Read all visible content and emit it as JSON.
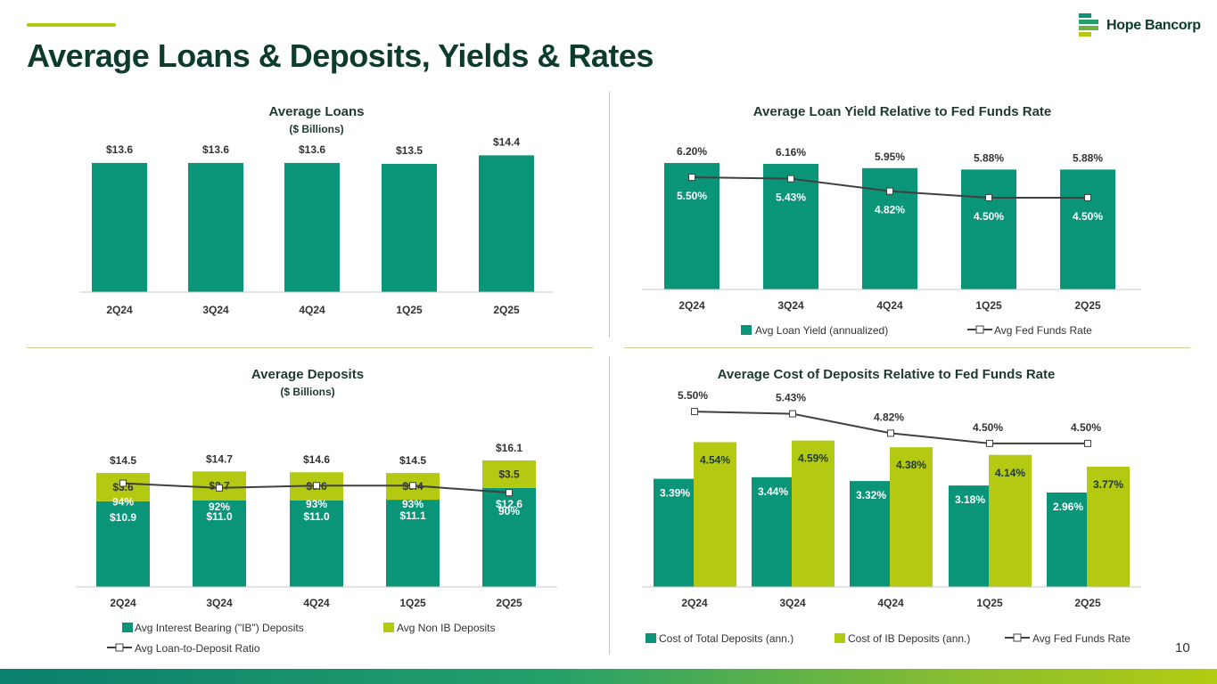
{
  "page": {
    "title": "Average Loans & Deposits, Yields & Rates",
    "logo_text": "Hope Bancorp",
    "page_number": "10"
  },
  "colors": {
    "teal": "#0a9478",
    "lime": "#b3c912",
    "line": "#404040",
    "title": "#0d3b2e"
  },
  "chart_data": [
    {
      "id": "loans",
      "type": "bar",
      "title": "Average Loans",
      "subtitle": "($ Billions)",
      "categories": [
        "2Q24",
        "3Q24",
        "4Q24",
        "1Q25",
        "2Q25"
      ],
      "values": [
        13.6,
        13.6,
        13.6,
        13.5,
        14.4
      ],
      "labels": [
        "$13.6",
        "$13.6",
        "$13.6",
        "$13.5",
        "$14.4"
      ],
      "ylim": [
        0,
        16.5
      ]
    },
    {
      "id": "loan_yield",
      "type": "bar",
      "title": "Average Loan Yield Relative to Fed Funds Rate",
      "categories": [
        "2Q24",
        "3Q24",
        "4Q24",
        "1Q25",
        "2Q25"
      ],
      "ylim": [
        0,
        6.9
      ],
      "series": [
        {
          "name": "Avg Loan Yield (annualized)",
          "kind": "bar",
          "values": [
            6.2,
            6.16,
            5.95,
            5.88,
            5.88
          ],
          "labels": [
            "6.20%",
            "6.16%",
            "5.95%",
            "5.88%",
            "5.88%"
          ]
        },
        {
          "name": "Avg Fed Funds Rate",
          "kind": "line",
          "values": [
            5.5,
            5.43,
            4.82,
            4.5,
            4.5
          ],
          "labels": [
            "5.50%",
            "5.43%",
            "4.82%",
            "4.50%",
            "4.50%"
          ]
        }
      ]
    },
    {
      "id": "deposits",
      "type": "stacked-bar",
      "title": "Average Deposits",
      "subtitle": "($ Billions)",
      "categories": [
        "2Q24",
        "3Q24",
        "4Q24",
        "1Q25",
        "2Q25"
      ],
      "ylim": [
        0,
        19.5
      ],
      "totals": [
        "$14.5",
        "$14.7",
        "$14.6",
        "$14.5",
        "$16.1"
      ],
      "series": [
        {
          "name": "Avg Interest Bearing (\"IB\") Deposits",
          "kind": "bar",
          "values": [
            10.9,
            11.0,
            11.0,
            11.1,
            12.6
          ],
          "labels": [
            "$10.9",
            "$11.0",
            "$11.0",
            "$11.1",
            "$12.6"
          ]
        },
        {
          "name": "Avg Non IB Deposits",
          "kind": "bar",
          "values": [
            3.6,
            3.7,
            3.6,
            3.4,
            3.5
          ],
          "labels": [
            "$3.6",
            "$3.7",
            "$3.6",
            "$3.4",
            "$3.5"
          ]
        },
        {
          "name": "Avg Loan-to-Deposit Ratio",
          "kind": "line",
          "values": [
            94,
            92,
            93,
            93,
            90
          ],
          "labels": [
            "94%",
            "92%",
            "93%",
            "93%",
            "90%"
          ],
          "ylim": [
            50,
            115
          ]
        }
      ]
    },
    {
      "id": "cost_deposits",
      "type": "bar",
      "title": "Average Cost of Deposits Relative to Fed Funds Rate",
      "categories": [
        "2Q24",
        "3Q24",
        "4Q24",
        "1Q25",
        "2Q25"
      ],
      "ylim": [
        0,
        6.2
      ],
      "series": [
        {
          "name": "Cost of Total Deposits (ann.)",
          "kind": "bar",
          "values": [
            3.39,
            3.44,
            3.32,
            3.18,
            2.96
          ],
          "labels": [
            "3.39%",
            "3.44%",
            "3.32%",
            "3.18%",
            "2.96%"
          ]
        },
        {
          "name": "Cost of IB Deposits (ann.)",
          "kind": "bar",
          "values": [
            4.54,
            4.59,
            4.38,
            4.14,
            3.77
          ],
          "labels": [
            "4.54%",
            "4.59%",
            "4.38%",
            "4.14%",
            "3.77%"
          ]
        },
        {
          "name": "Avg Fed Funds Rate",
          "kind": "line",
          "values": [
            5.5,
            5.43,
            4.82,
            4.5,
            4.5
          ],
          "labels": [
            "5.50%",
            "5.43%",
            "4.82%",
            "4.50%",
            "4.50%"
          ]
        }
      ]
    }
  ]
}
